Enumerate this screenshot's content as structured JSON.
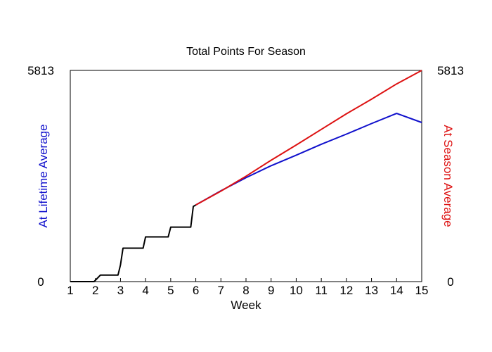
{
  "chart_data": {
    "type": "line",
    "title": "Total Points For Season",
    "xlabel": "Week",
    "ylabel_left": "At Lifetime Average",
    "ylabel_right": "At Season Average",
    "xlim": [
      1,
      15
    ],
    "ylim": [
      0,
      5813
    ],
    "y_tick_labels": [
      "0",
      "5813"
    ],
    "x_ticks": [
      1,
      2,
      3,
      4,
      5,
      6,
      7,
      8,
      9,
      10,
      11,
      12,
      13,
      14,
      15
    ],
    "grid": false,
    "series": [
      {
        "key": "actual",
        "color": "#000000",
        "x": [
          1,
          1.95,
          2.2,
          2.9,
          3.0,
          3.1,
          3.9,
          4.0,
          4.9,
          5.0,
          5.8,
          5.9,
          6.0
        ],
        "y": [
          0,
          0,
          180,
          180,
          460,
          920,
          920,
          1230,
          1230,
          1500,
          1500,
          2070,
          2110
        ]
      },
      {
        "key": "lifetime",
        "color": "#1010cc",
        "x": [
          6,
          7,
          8,
          9,
          10,
          11,
          12,
          13,
          14,
          15
        ],
        "y": [
          2110,
          2500,
          2860,
          3190,
          3480,
          3780,
          4060,
          4350,
          4630,
          4380
        ]
      },
      {
        "key": "season",
        "color": "#dd1111",
        "x": [
          6,
          7,
          8,
          9,
          10,
          11,
          12,
          13,
          14,
          15
        ],
        "y": [
          2110,
          2490,
          2900,
          3340,
          3760,
          4190,
          4620,
          5020,
          5440,
          5813
        ]
      }
    ]
  }
}
